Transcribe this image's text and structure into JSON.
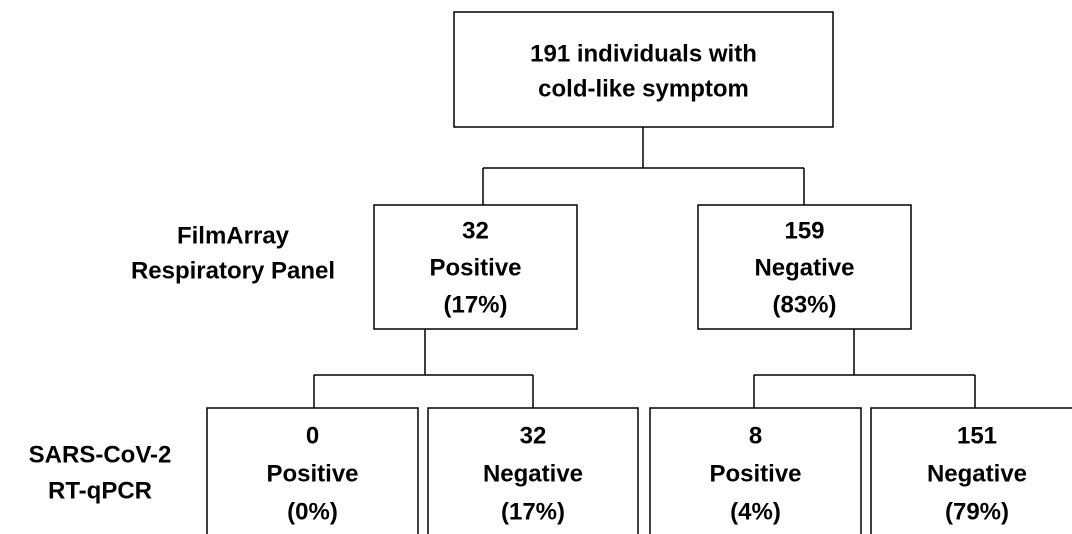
{
  "row_labels": [
    {
      "lines": [
        "FilmArray",
        "Respiratory Panel"
      ]
    },
    {
      "lines": [
        "SARS-CoV-2",
        "RT-qPCR"
      ]
    }
  ],
  "nodes": [
    {
      "lines": [
        "191 individuals with",
        "cold-like symptom"
      ]
    },
    {
      "lines": [
        "32",
        "Positive",
        "(17%)"
      ]
    },
    {
      "lines": [
        "159",
        "Negative",
        "(83%)"
      ]
    },
    {
      "lines": [
        "0",
        "Positive",
        "(0%)"
      ]
    },
    {
      "lines": [
        "32",
        "Negative",
        "(17%)"
      ]
    },
    {
      "lines": [
        "8",
        "Positive",
        "(4%)"
      ]
    },
    {
      "lines": [
        "151",
        "Negative",
        "(79%)"
      ]
    }
  ]
}
